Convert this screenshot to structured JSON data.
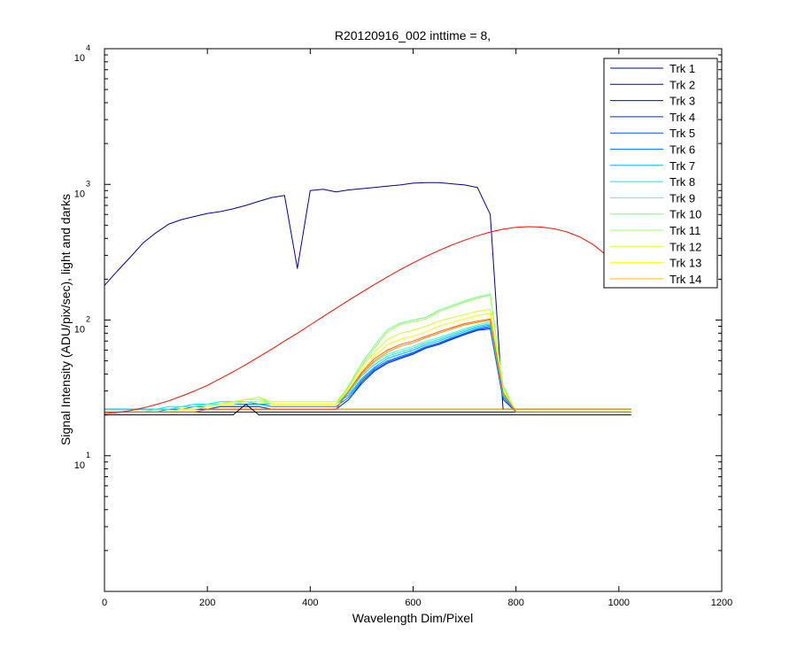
{
  "chart_data": {
    "type": "line",
    "title": "R20120916_002 inttime = 8,",
    "xlabel": "Wavelength Dim/Pixel",
    "ylabel": "Signal Intensity (ADU/pix/sec), light and darks",
    "xlim": [
      0,
      1200
    ],
    "ylim": [
      1,
      10000
    ],
    "yscale": "log",
    "grid": false,
    "legend_position": "top-right",
    "x_ticks": [
      "0",
      "200",
      "400",
      "600",
      "800",
      "1000",
      "1200"
    ],
    "y_ticks": [
      {
        "base": "10",
        "exp": "1"
      },
      {
        "base": "10",
        "exp": "2"
      },
      {
        "base": "10",
        "exp": "3"
      },
      {
        "base": "10",
        "exp": "4"
      }
    ],
    "x": [
      0,
      25,
      50,
      75,
      100,
      125,
      150,
      175,
      200,
      225,
      250,
      275,
      300,
      325,
      350,
      375,
      400,
      425,
      450,
      475,
      500,
      525,
      550,
      575,
      600,
      625,
      650,
      675,
      700,
      725,
      750,
      775,
      800,
      825,
      850,
      875,
      900,
      925,
      950,
      975,
      1000,
      1024
    ],
    "series": [
      {
        "name": "Trk 1",
        "color": "#00008f",
        "values": [
          180,
          230,
          290,
          370,
          440,
          510,
          550,
          580,
          610,
          630,
          660,
          700,
          750,
          800,
          830,
          240,
          900,
          920,
          880,
          910,
          930,
          950,
          970,
          990,
          1020,
          1030,
          1030,
          1010,
          990,
          950,
          600,
          22,
          22,
          22,
          22,
          22,
          22,
          22,
          22,
          22,
          22,
          22
        ]
      },
      {
        "name": "Trk 2",
        "color": "#0000bf",
        "values": [
          21,
          21,
          21,
          21,
          21,
          21,
          21,
          21,
          21,
          21,
          21,
          21,
          21,
          21,
          21,
          21,
          21,
          21,
          21,
          21,
          21,
          21,
          21,
          21,
          21,
          21,
          21,
          21,
          21,
          21,
          21,
          21,
          21,
          21,
          21,
          21,
          21,
          21,
          21,
          21,
          21,
          21
        ]
      },
      {
        "name": "Trk 3",
        "color": "#0000ef",
        "values": [
          22,
          22,
          22,
          22,
          22,
          22,
          22,
          22,
          22,
          22,
          22,
          22,
          22,
          22,
          22,
          22,
          22,
          22,
          22,
          22,
          22,
          22,
          22,
          22,
          22,
          22,
          22,
          22,
          22,
          22,
          22,
          22,
          22,
          22,
          22,
          22,
          22,
          22,
          22,
          22,
          22,
          22
        ]
      },
      {
        "name": "Trk 4",
        "color": "#0020ff",
        "values": [
          21,
          21,
          21,
          21,
          21,
          21,
          22,
          22,
          22,
          23,
          23,
          23,
          23,
          22,
          22,
          22,
          22,
          22,
          22,
          26,
          34,
          42,
          48,
          52,
          56,
          62,
          66,
          72,
          78,
          84,
          86,
          26,
          21,
          21,
          21,
          21,
          21,
          21,
          21,
          21,
          21,
          21
        ]
      },
      {
        "name": "Trk 5",
        "color": "#0050ff",
        "values": [
          21,
          21,
          21,
          21,
          21,
          21,
          22,
          22,
          22,
          23,
          23,
          23,
          23,
          22,
          22,
          22,
          22,
          22,
          22,
          26,
          35,
          43,
          49,
          53,
          57,
          63,
          67,
          73,
          79,
          85,
          88,
          27,
          21,
          21,
          21,
          21,
          21,
          21,
          21,
          21,
          21,
          21
        ]
      },
      {
        "name": "Trk 6",
        "color": "#0080ff",
        "values": [
          21,
          21,
          21,
          21,
          21,
          22,
          22,
          23,
          23,
          24,
          24,
          24,
          24,
          23,
          23,
          23,
          23,
          23,
          23,
          27,
          36,
          44,
          50,
          54,
          58,
          64,
          68,
          74,
          80,
          86,
          90,
          27,
          21,
          21,
          21,
          21,
          21,
          21,
          21,
          21,
          21,
          21
        ]
      },
      {
        "name": "Trk 7",
        "color": "#00b0ff",
        "values": [
          21,
          21,
          21,
          21,
          22,
          22,
          23,
          23,
          24,
          24,
          25,
          25,
          24,
          24,
          24,
          24,
          24,
          24,
          24,
          28,
          37,
          45,
          52,
          56,
          60,
          66,
          70,
          76,
          82,
          88,
          92,
          28,
          21,
          21,
          21,
          21,
          21,
          21,
          21,
          21,
          21,
          21
        ]
      },
      {
        "name": "Trk 8",
        "color": "#10e0ef",
        "values": [
          22,
          22,
          22,
          22,
          22,
          23,
          23,
          24,
          24,
          25,
          25,
          25,
          25,
          24,
          24,
          24,
          24,
          24,
          24,
          29,
          39,
          47,
          54,
          58,
          62,
          68,
          72,
          78,
          84,
          90,
          94,
          28,
          21,
          21,
          21,
          21,
          21,
          21,
          21,
          21,
          21,
          21
        ]
      },
      {
        "name": "Trk 9",
        "color": "#40ffbf",
        "values": [
          21,
          21,
          21,
          21,
          22,
          22,
          23,
          23,
          24,
          24,
          25,
          25,
          25,
          24,
          24,
          24,
          24,
          24,
          24,
          30,
          40,
          49,
          56,
          60,
          64,
          70,
          74,
          80,
          86,
          92,
          97,
          29,
          21,
          21,
          21,
          21,
          21,
          21,
          21,
          21,
          21,
          21
        ]
      },
      {
        "name": "Trk 10",
        "color": "#70ff8f",
        "values": [
          21,
          21,
          21,
          21,
          21,
          21,
          22,
          22,
          23,
          24,
          25,
          26,
          27,
          24,
          24,
          24,
          24,
          24,
          24,
          33,
          48,
          65,
          85,
          95,
          100,
          105,
          118,
          128,
          138,
          148,
          155,
          33,
          21,
          21,
          21,
          21,
          21,
          21,
          21,
          21,
          21,
          21
        ]
      },
      {
        "name": "Trk 11",
        "color": "#a0ff5f",
        "values": [
          21,
          21,
          21,
          21,
          21,
          21,
          22,
          22,
          23,
          24,
          25,
          26,
          26,
          24,
          24,
          24,
          24,
          24,
          24,
          32,
          46,
          62,
          82,
          93,
          97,
          102,
          115,
          125,
          135,
          145,
          152,
          32,
          21,
          21,
          21,
          21,
          21,
          21,
          21,
          21,
          21,
          21
        ]
      },
      {
        "name": "Trk 12",
        "color": "#d0ff2f",
        "values": [
          21,
          21,
          21,
          21,
          21,
          21,
          22,
          22,
          23,
          24,
          25,
          26,
          27,
          25,
          25,
          25,
          25,
          25,
          25,
          32,
          45,
          58,
          72,
          80,
          84,
          90,
          98,
          104,
          110,
          116,
          120,
          31,
          21,
          21,
          21,
          21,
          21,
          21,
          21,
          21,
          21,
          21
        ]
      },
      {
        "name": "Trk 13",
        "color": "#ffff00",
        "values": [
          21,
          21,
          21,
          21,
          21,
          21,
          22,
          22,
          23,
          24,
          24,
          25,
          25,
          24,
          24,
          24,
          24,
          24,
          24,
          31,
          42,
          54,
          66,
          72,
          76,
          82,
          90,
          96,
          102,
          108,
          112,
          30,
          21,
          21,
          21,
          21,
          21,
          21,
          21,
          21,
          21,
          21
        ]
      },
      {
        "name": "Trk 14",
        "color": "#ffc000",
        "values": [
          21,
          21,
          21,
          21,
          21,
          21,
          21,
          21,
          22,
          22,
          22,
          22,
          22,
          22,
          22,
          22,
          22,
          22,
          22,
          22,
          22,
          22,
          22,
          22,
          22,
          22,
          22,
          22,
          22,
          22,
          22,
          22,
          22,
          22,
          22,
          22,
          22,
          22,
          22,
          22,
          22,
          22
        ]
      },
      {
        "name": "",
        "color": "#ff8f00",
        "values": [
          21,
          21,
          21,
          21,
          21,
          21,
          21,
          21,
          22,
          22,
          22,
          22,
          22,
          22,
          22,
          22,
          22,
          22,
          22,
          30,
          40,
          50,
          58,
          64,
          68,
          74,
          80,
          86,
          92,
          96,
          100,
          29,
          21,
          21,
          21,
          21,
          21,
          21,
          21,
          21,
          21,
          21
        ]
      },
      {
        "name": "",
        "color": "#ff5f00",
        "values": [
          21,
          21,
          21,
          21,
          21,
          21,
          21,
          21,
          22,
          22,
          22,
          22,
          22,
          22,
          22,
          22,
          22,
          22,
          22,
          30,
          41,
          52,
          60,
          66,
          70,
          76,
          82,
          88,
          94,
          98,
          102,
          29,
          21,
          21,
          21,
          21,
          21,
          21,
          21,
          21,
          21,
          21
        ]
      },
      {
        "name": "",
        "color": "#ef1000",
        "values": [
          20.5,
          20.8,
          21.5,
          22.5,
          23.8,
          25.4,
          27.5,
          30,
          33,
          37,
          41.5,
          47,
          53.5,
          61,
          70,
          80,
          92,
          106,
          122,
          140,
          160,
          183,
          208,
          235,
          264,
          294,
          325,
          357,
          388,
          418,
          445,
          467,
          482,
          488,
          484,
          470,
          445,
          408,
          360,
          302,
          235,
          182
        ]
      },
      {
        "name": "",
        "color": "#000000",
        "values": [
          20,
          20,
          20,
          20,
          20,
          20,
          20,
          20,
          20,
          20,
          20,
          24,
          20,
          20,
          20,
          20,
          20,
          20,
          20,
          20,
          20,
          20,
          20,
          20,
          20,
          20,
          20,
          20,
          20,
          20,
          20,
          20,
          20,
          20,
          20,
          20,
          20,
          20,
          20,
          20,
          20,
          20
        ]
      }
    ]
  }
}
